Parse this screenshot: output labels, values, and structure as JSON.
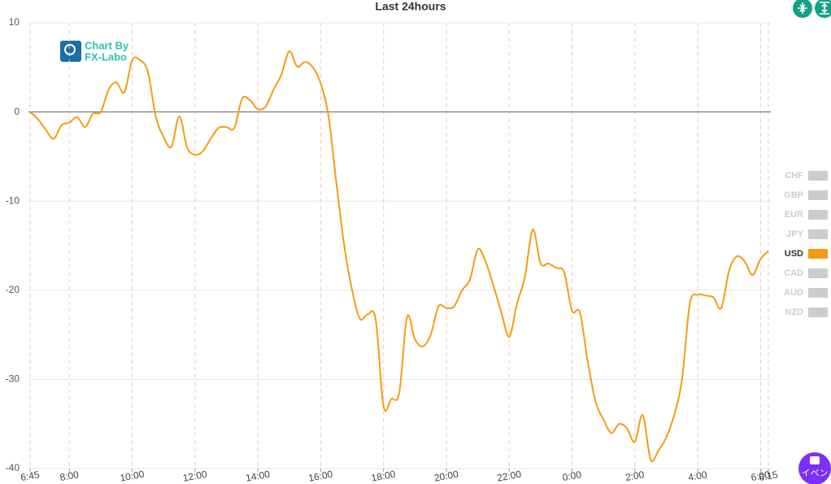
{
  "chart_data": {
    "type": "line",
    "title": "Last 24hours",
    "watermark": [
      "Chart By",
      "FX-Labo"
    ],
    "event_button": "イベン",
    "categories": [
      "6:45",
      null,
      null,
      null,
      null,
      "8:00",
      null,
      null,
      null,
      null,
      null,
      null,
      null,
      "10:00",
      null,
      null,
      null,
      null,
      null,
      null,
      null,
      "12:00",
      null,
      null,
      null,
      null,
      null,
      null,
      null,
      "14:00",
      null,
      null,
      null,
      null,
      null,
      null,
      null,
      "16:00",
      null,
      null,
      null,
      null,
      null,
      null,
      null,
      "18:00",
      null,
      null,
      null,
      null,
      null,
      null,
      null,
      "20:00",
      null,
      null,
      null,
      null,
      null,
      null,
      null,
      "22:00",
      null,
      null,
      null,
      null,
      null,
      null,
      null,
      "0:00",
      null,
      null,
      null,
      null,
      null,
      null,
      null,
      "2:00",
      null,
      null,
      null,
      null,
      null,
      null,
      null,
      "4:00",
      null,
      null,
      null,
      null,
      null,
      null,
      null,
      "6:00",
      "6:15"
    ],
    "series": [
      {
        "name": "CHF",
        "color": "#cccccc",
        "visible": false
      },
      {
        "name": "GBP",
        "color": "#cccccc",
        "visible": false
      },
      {
        "name": "EUR",
        "color": "#cccccc",
        "visible": false
      },
      {
        "name": "JPY",
        "color": "#cccccc",
        "visible": false
      },
      {
        "name": "USD",
        "color": "#f39c12",
        "visible": true,
        "values": [
          0,
          -0.8,
          -2,
          -3,
          -1.5,
          -1.2,
          -0.6,
          -1.7,
          -0.2,
          0,
          2.5,
          3.3,
          2.2,
          5.8,
          5.8,
          4.5,
          -0.5,
          -2.8,
          -3.9,
          -0.5,
          -4,
          -4.8,
          -4.4,
          -3,
          -1.8,
          -1.7,
          -1.8,
          1.5,
          1.3,
          0.3,
          0.6,
          2.5,
          4.2,
          6.8,
          5.1,
          5.6,
          5,
          3.2,
          -0.5,
          -8,
          -15,
          -20,
          -23.2,
          -22.7,
          -23.3,
          -33,
          -32.2,
          -31.5,
          -23,
          -25.5,
          -26.3,
          -25,
          -21.8,
          -22,
          -21.8,
          -20,
          -18.8,
          -15.4,
          -16.8,
          -19.5,
          -22.5,
          -25.2,
          -21.5,
          -18.5,
          -13.2,
          -17,
          -17,
          -17.5,
          -18,
          -22.3,
          -22.5,
          -28,
          -32.5,
          -34.5,
          -36,
          -35,
          -35.5,
          -37,
          -34,
          -39,
          -38,
          -36.5,
          -34,
          -30,
          -21.5,
          -20.5,
          -20.6,
          -20.8,
          -22,
          -17.8,
          -16.2,
          -16.8,
          -18.3,
          -16.5,
          -15.6
        ]
      },
      {
        "name": "CAD",
        "color": "#cccccc",
        "visible": false
      },
      {
        "name": "AUD",
        "color": "#cccccc",
        "visible": false
      },
      {
        "name": "NZD",
        "color": "#cccccc",
        "visible": false
      }
    ],
    "ylim": [
      -40,
      10
    ],
    "yticks": [
      10,
      0,
      -10,
      -20,
      -30,
      -40
    ],
    "grid": true,
    "legend": "right"
  }
}
